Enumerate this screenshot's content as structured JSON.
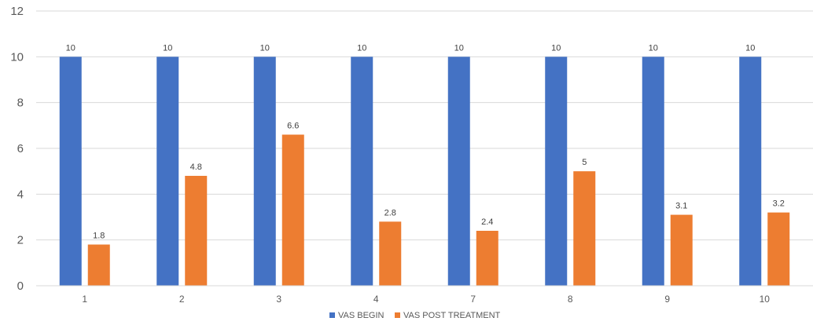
{
  "chart_data": {
    "type": "bar",
    "categories": [
      "1",
      "2",
      "3",
      "4",
      "7",
      "8",
      "9",
      "10"
    ],
    "series": [
      {
        "name": "VAS BEGIN",
        "color": "#4472C4",
        "values": [
          10,
          10,
          10,
          10,
          10,
          10,
          10,
          10
        ]
      },
      {
        "name": "VAS POST TREATMENT",
        "color": "#ED7D31",
        "values": [
          1.8,
          4.8,
          6.6,
          2.8,
          2.4,
          5,
          3.1,
          3.2
        ]
      }
    ],
    "ylim": [
      0,
      12
    ],
    "yticks": [
      "0",
      "2",
      "4",
      "6",
      "8",
      "10",
      "12"
    ],
    "grid": true,
    "legend_position": "bottom",
    "data_labels": true,
    "gridline_color": "#D9D9D9"
  }
}
